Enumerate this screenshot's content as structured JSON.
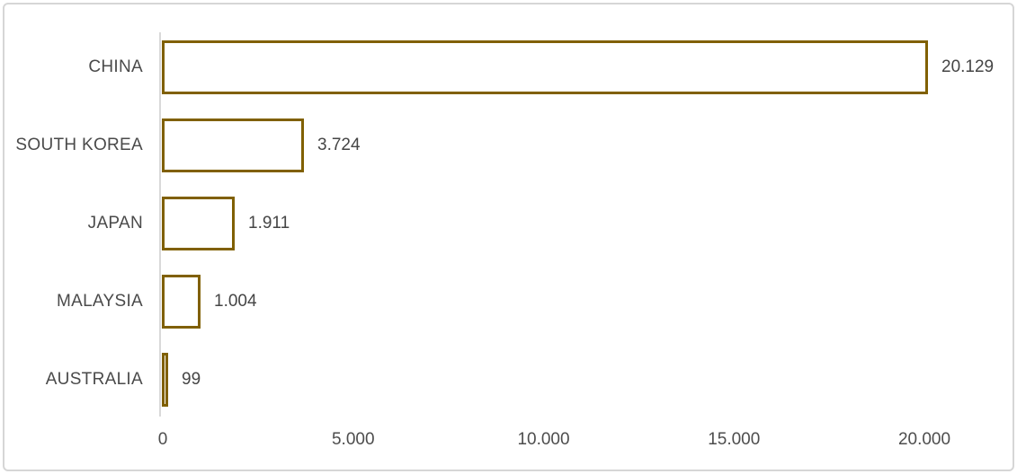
{
  "chart_data": {
    "type": "bar",
    "orientation": "horizontal",
    "title": "",
    "xlabel": "",
    "ylabel": "",
    "categories": [
      "CHINA",
      "SOUTH KOREA",
      "JAPAN",
      "MALAYSIA",
      "AUSTRALIA"
    ],
    "values": [
      20129,
      3724,
      1911,
      1004,
      99
    ],
    "value_labels": [
      "20.129",
      "3.724",
      "1.911",
      "1.004",
      "99"
    ],
    "x_ticks": {
      "values": [
        0,
        5000,
        10000,
        15000,
        20000
      ],
      "labels": [
        "0",
        "5.000",
        "10.000",
        "15.000",
        "20.000"
      ]
    },
    "xlim": [
      0,
      21500
    ],
    "grid": false,
    "legend": "none",
    "data_labels_position": "outside-end",
    "colors": {
      "bar_fill": "#ffffff",
      "bar_border": "#806000",
      "axis_line": "#d9d9d9",
      "label_text": "#4a4a4a",
      "frame_border": "#d6d6d6",
      "background": "#ffffff"
    }
  }
}
